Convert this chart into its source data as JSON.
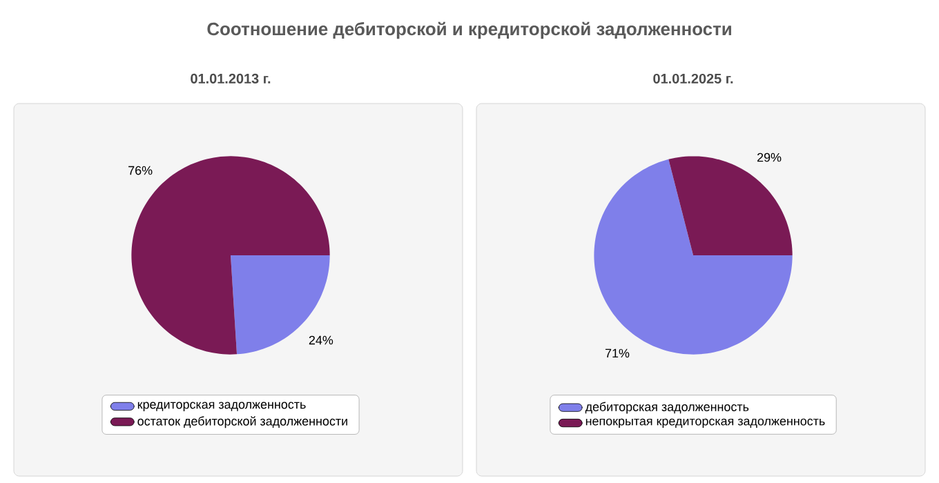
{
  "chart_data": [
    {
      "type": "other",
      "title": "Соотношение дебиторской и кредиторской задолженности"
    },
    {
      "type": "pie",
      "title": "01.01.2013 г.",
      "categories": [
        "кредиторская задолженность",
        "остаток дебиторской задолженности"
      ],
      "values": [
        24,
        76
      ],
      "value_labels": [
        "24%",
        "76%"
      ],
      "colors": [
        "#7f7fea",
        "#7a1a55"
      ],
      "legend": "bottom"
    },
    {
      "type": "pie",
      "title": "01.01.2025 г.",
      "categories": [
        "дебиторская задолженность",
        "непокрытая кредиторская задолженность"
      ],
      "values": [
        71,
        29
      ],
      "value_labels": [
        "71%",
        "29%"
      ],
      "colors": [
        "#7f7fea",
        "#7a1a55"
      ],
      "legend": "bottom"
    }
  ]
}
